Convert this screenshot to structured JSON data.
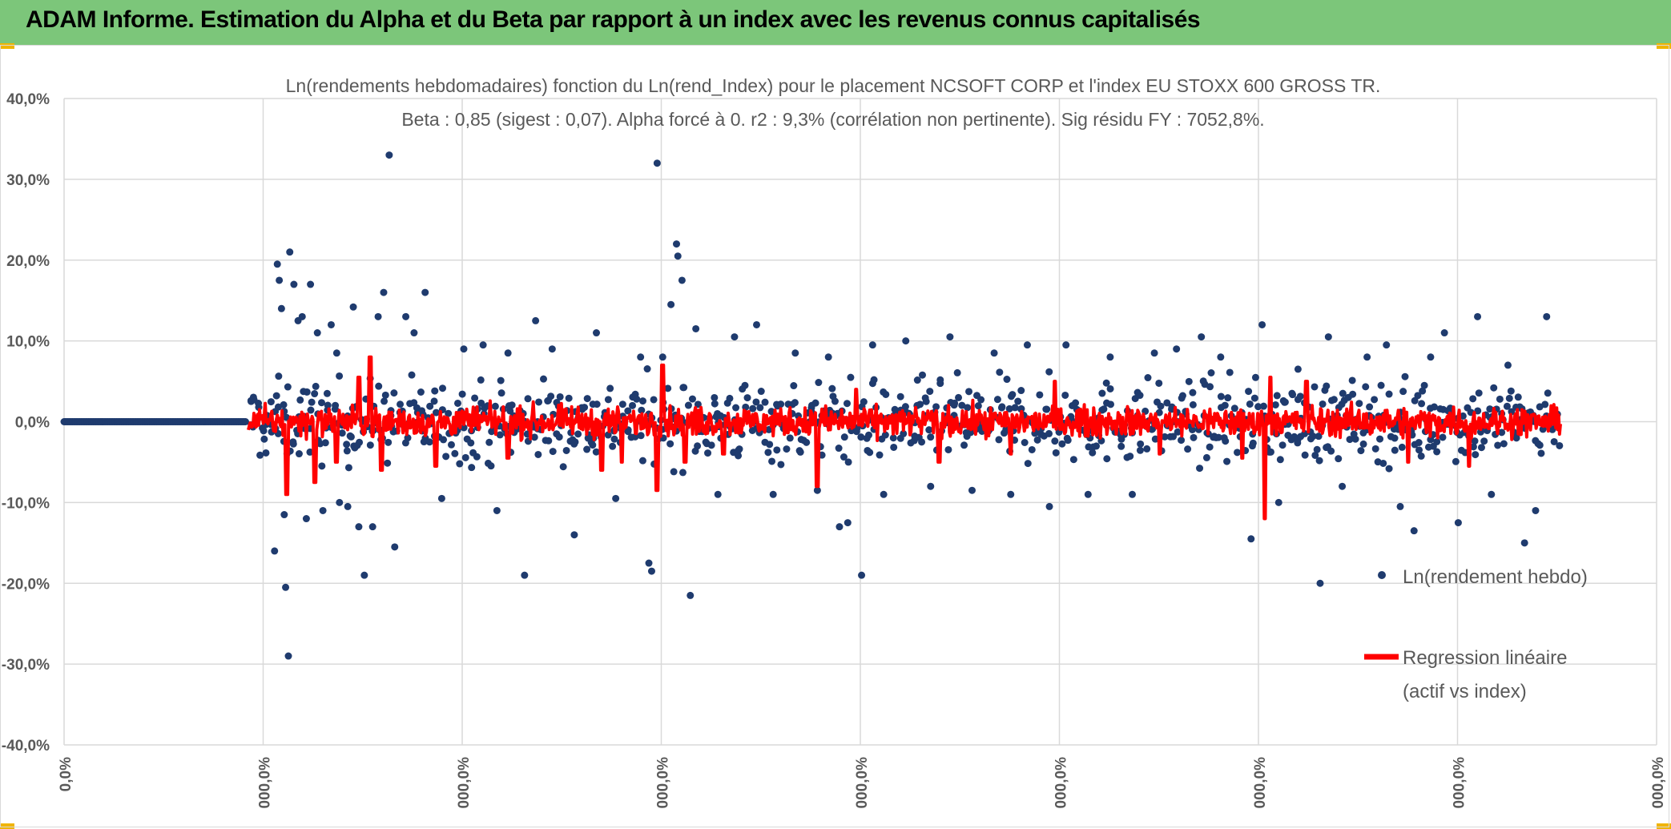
{
  "header": {
    "title": "ADAM Informe. Estimation du Alpha et du Beta par rapport à un index avec les revenus connus capitalisés"
  },
  "colors": {
    "banner": "#7cc67a",
    "scatter": "#1f3b6e",
    "regression": "#ff0000",
    "grid": "#d9d9d9",
    "text": "#595959"
  },
  "chart_data": {
    "type": "scatter",
    "title": "Ln(rendements hebdomadaires) fonction du Ln(rend_Index) pour le placement NCSOFT CORP et l'index EU STOXX 600 GROSS TR.",
    "subtitle": "Beta : 0,85 (sigest : 0,07). Alpha forcé à 0. r2 : 9,3% (corrélation non pertinente). Sig résidu FY : 7052,8%.",
    "xlabel": "",
    "ylabel": "",
    "ylim": [
      -40,
      40
    ],
    "y_ticks": [
      "-40,0%",
      "-30,0%",
      "-20,0%",
      "-10,0%",
      "0,0%",
      "10,0%",
      "20,0%",
      "30,0%",
      "40,0%"
    ],
    "x_ticks": [
      "0,0%",
      "000,0%",
      "000,0%",
      "000,0%",
      "000,0%",
      "000,0%",
      "000,0%",
      "000,0%",
      "000,0%"
    ],
    "grid": true,
    "legend_position": "right",
    "series": [
      {
        "name": "Ln(rendement hebdo)",
        "kind": "scatter",
        "zero_run": 150,
        "outliers": [
          [
            9.5,
            -16
          ],
          [
            10.5,
            19.5
          ],
          [
            11.2,
            17.5
          ],
          [
            12,
            14
          ],
          [
            13,
            -11.5
          ],
          [
            13.5,
            -20.5
          ],
          [
            14.5,
            -29
          ],
          [
            15,
            21
          ],
          [
            16.5,
            17
          ],
          [
            18,
            12.5
          ],
          [
            19.5,
            13
          ],
          [
            21,
            -12
          ],
          [
            22.5,
            17
          ],
          [
            25,
            11
          ],
          [
            27,
            -11
          ],
          [
            30,
            12
          ],
          [
            32,
            8.5
          ],
          [
            33,
            -10
          ],
          [
            36,
            -10.5
          ],
          [
            38,
            14.2
          ],
          [
            40,
            -13
          ],
          [
            42,
            -19
          ],
          [
            45,
            -13
          ],
          [
            47,
            13
          ],
          [
            49,
            16
          ],
          [
            51,
            33
          ],
          [
            53,
            -15.5
          ],
          [
            57,
            13
          ],
          [
            60,
            11
          ],
          [
            64,
            16
          ],
          [
            70,
            -9.5
          ],
          [
            78,
            9
          ],
          [
            85,
            9.5
          ],
          [
            90,
            -11
          ],
          [
            94,
            8.5
          ],
          [
            100,
            -19
          ],
          [
            104,
            12.5
          ],
          [
            110,
            9
          ],
          [
            118,
            -14
          ],
          [
            126,
            11
          ],
          [
            133,
            -9.5
          ],
          [
            142,
            8
          ],
          [
            145,
            -17.5
          ],
          [
            146,
            -18.5
          ],
          [
            148,
            32
          ],
          [
            150,
            8
          ],
          [
            153,
            14.5
          ],
          [
            155,
            22
          ],
          [
            155.5,
            20.5
          ],
          [
            157,
            17.5
          ],
          [
            160,
            -21.5
          ],
          [
            162,
            11.5
          ],
          [
            170,
            -9
          ],
          [
            176,
            10.5
          ],
          [
            184,
            12
          ],
          [
            190,
            -9
          ],
          [
            198,
            8.5
          ],
          [
            206,
            -8.5
          ],
          [
            210,
            8
          ],
          [
            214,
            -13
          ],
          [
            217,
            -12.5
          ],
          [
            222,
            -19
          ],
          [
            226,
            9.5
          ],
          [
            230,
            -9
          ],
          [
            238,
            10
          ],
          [
            247,
            -8
          ],
          [
            254,
            10.5
          ],
          [
            262,
            -8.5
          ],
          [
            270,
            8.5
          ],
          [
            276,
            -9
          ],
          [
            282,
            9.5
          ],
          [
            290,
            -10.5
          ],
          [
            296,
            9.5
          ],
          [
            304,
            -9
          ],
          [
            312,
            8
          ],
          [
            320,
            -9
          ],
          [
            328,
            8.5
          ],
          [
            336,
            9
          ],
          [
            345,
            10.5
          ],
          [
            352,
            8
          ],
          [
            363,
            -14.5
          ],
          [
            367,
            12
          ],
          [
            373,
            -10
          ],
          [
            380,
            6.5
          ],
          [
            388,
            -20
          ],
          [
            391,
            10.5
          ],
          [
            396,
            -8
          ],
          [
            405,
            8
          ],
          [
            412,
            9.5
          ],
          [
            417,
            -10.5
          ],
          [
            422,
            -13.5
          ],
          [
            428,
            8
          ],
          [
            433,
            11
          ],
          [
            438,
            -12.5
          ],
          [
            445,
            13
          ],
          [
            450,
            -9
          ],
          [
            456,
            7
          ],
          [
            462,
            -15
          ],
          [
            466,
            -11
          ],
          [
            470,
            13
          ]
        ],
        "note_range": [
          -5,
          5
        ]
      },
      {
        "name": "Regression linéaire (actif vs index)",
        "kind": "line",
        "spikes": [
          [
            14,
            -9
          ],
          [
            24,
            -7.5
          ],
          [
            32,
            -5
          ],
          [
            40,
            5.5
          ],
          [
            44,
            8
          ],
          [
            48,
            -6
          ],
          [
            68,
            -5.5
          ],
          [
            94,
            -4.5
          ],
          [
            128,
            -6
          ],
          [
            135,
            -5
          ],
          [
            148,
            -8.5
          ],
          [
            150,
            7
          ],
          [
            158,
            -5
          ],
          [
            172,
            -4
          ],
          [
            206,
            -8
          ],
          [
            220,
            4
          ],
          [
            250,
            -5
          ],
          [
            276,
            -4
          ],
          [
            292,
            5
          ],
          [
            330,
            -4
          ],
          [
            360,
            -4.5
          ],
          [
            368,
            -12
          ],
          [
            370,
            5.5
          ],
          [
            383,
            5
          ],
          [
            420,
            -5
          ],
          [
            442,
            -5.5
          ]
        ]
      }
    ],
    "legend": {
      "scatter_label": "Ln(rendement hebdo)",
      "line_label_1": "Regression linéaire",
      "line_label_2": "(actif vs index)"
    },
    "x_count": 475
  }
}
